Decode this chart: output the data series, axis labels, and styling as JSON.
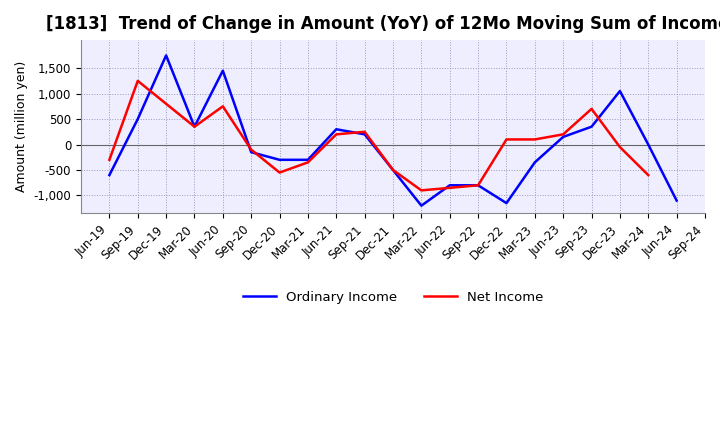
{
  "title": "[1813]  Trend of Change in Amount (YoY) of 12Mo Moving Sum of Incomes",
  "ylabel": "Amount (million yen)",
  "x_labels": [
    "Jun-19",
    "Sep-19",
    "Dec-19",
    "Mar-20",
    "Jun-20",
    "Sep-20",
    "Dec-20",
    "Mar-21",
    "Jun-21",
    "Sep-21",
    "Dec-21",
    "Mar-22",
    "Jun-22",
    "Sep-22",
    "Dec-22",
    "Mar-23",
    "Jun-23",
    "Sep-23",
    "Dec-23",
    "Mar-24",
    "Jun-24",
    "Sep-24"
  ],
  "ordinary_income": [
    -600,
    500,
    1750,
    350,
    1450,
    -150,
    -300,
    -300,
    300,
    200,
    -500,
    -1200,
    -800,
    -800,
    -1150,
    -350,
    150,
    350,
    1050,
    0,
    -1100,
    null
  ],
  "net_income": [
    -300,
    1250,
    800,
    350,
    750,
    -100,
    -550,
    -350,
    200,
    250,
    -500,
    -900,
    -850,
    -800,
    100,
    100,
    200,
    700,
    -50,
    -600,
    null,
    null
  ],
  "ordinary_color": "#0000FF",
  "net_color": "#FF0000",
  "background_color": "#FFFFFF",
  "plot_bg_color": "#EEEEFF",
  "grid_color": "#9999BB",
  "ylim": [
    -1350,
    2050
  ],
  "yticks": [
    -1000,
    -500,
    0,
    500,
    1000,
    1500
  ],
  "title_fontsize": 12,
  "axis_label_fontsize": 9,
  "tick_fontsize": 8.5,
  "legend_labels": [
    "Ordinary Income",
    "Net Income"
  ],
  "line_width": 1.8
}
